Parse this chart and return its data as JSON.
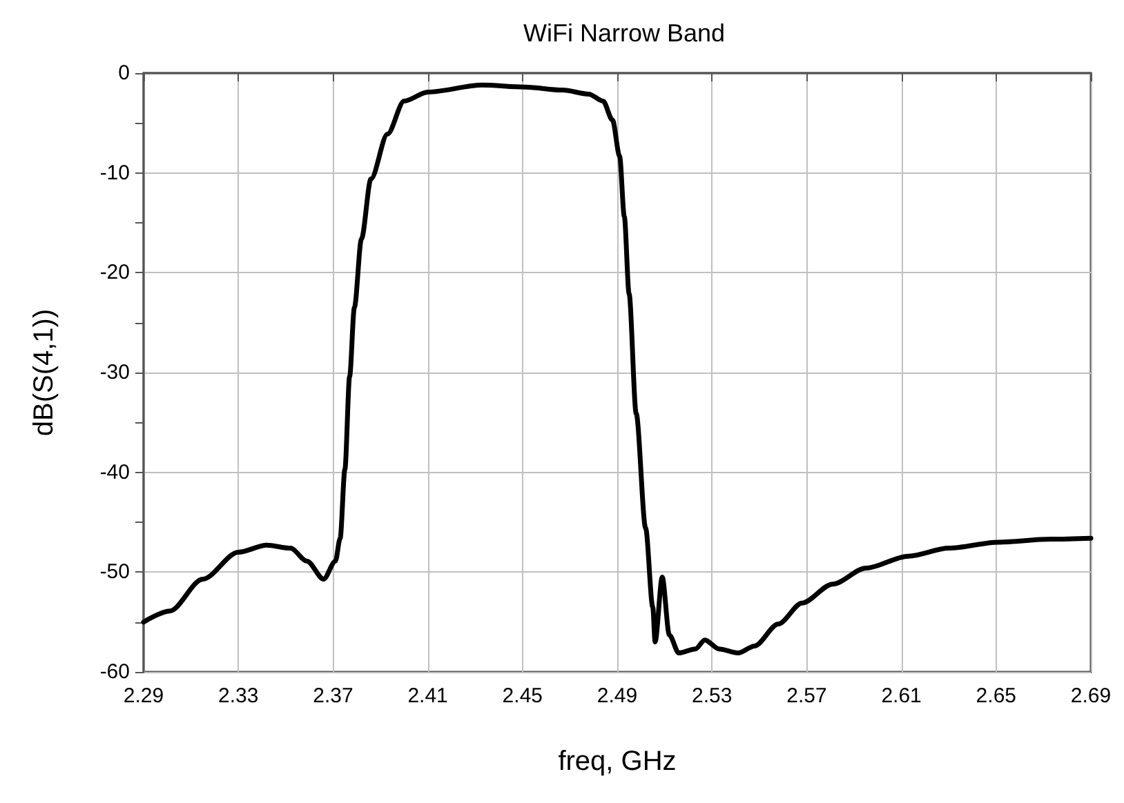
{
  "chart_data": {
    "type": "line",
    "title": "WiFi Narrow Band",
    "xlabel": "freq, GHz",
    "ylabel": "dB(S(4,1))",
    "x": [
      2.29,
      2.301,
      2.315,
      2.33,
      2.342,
      2.352,
      2.359,
      2.366,
      2.371,
      2.373,
      2.375,
      2.377,
      2.379,
      2.382,
      2.386,
      2.393,
      2.4,
      2.41,
      2.433,
      2.451,
      2.467,
      2.478,
      2.484,
      2.488,
      2.491,
      2.493,
      2.495,
      2.498,
      2.502,
      2.505,
      2.506,
      2.509,
      2.512,
      2.516,
      2.523,
      2.527,
      2.533,
      2.541,
      2.548,
      2.558,
      2.568,
      2.581,
      2.595,
      2.613,
      2.63,
      2.651,
      2.673,
      2.69
    ],
    "series": [
      {
        "color": "#000000",
        "values": [
          -55.0,
          -53.9,
          -50.7,
          -48.0,
          -47.3,
          -47.6,
          -48.9,
          -50.7,
          -48.9,
          -46.6,
          -39.7,
          -30.4,
          -23.5,
          -16.6,
          -10.6,
          -6.1,
          -2.8,
          -1.9,
          -1.2,
          -1.4,
          -1.7,
          -2.1,
          -2.8,
          -4.7,
          -8.3,
          -14.4,
          -22.1,
          -34.1,
          -45.6,
          -53.5,
          -57.0,
          -50.5,
          -56.3,
          -58.1,
          -57.7,
          -56.8,
          -57.7,
          -58.1,
          -57.4,
          -55.2,
          -53.1,
          -51.2,
          -49.6,
          -48.4,
          -47.6,
          -47.0,
          -46.7,
          -46.6
        ]
      }
    ],
    "xlim": [
      2.29,
      2.69
    ],
    "xticks": [
      2.29,
      2.33,
      2.37,
      2.41,
      2.45,
      2.49,
      2.53,
      2.57,
      2.61,
      2.65,
      2.69
    ],
    "ylim": [
      -60,
      0
    ],
    "yticks": [
      -60,
      {
        "value": -55,
        "label": null
      },
      -50,
      {
        "value": -45,
        "label": null
      },
      -40,
      {
        "value": -35,
        "label": null
      },
      -30,
      {
        "value": -25,
        "label": null
      },
      -20,
      {
        "value": -15,
        "label": null
      },
      -10,
      {
        "value": -5,
        "label": null
      },
      0
    ],
    "grid": true,
    "marker": "none",
    "line_style": "solid"
  }
}
